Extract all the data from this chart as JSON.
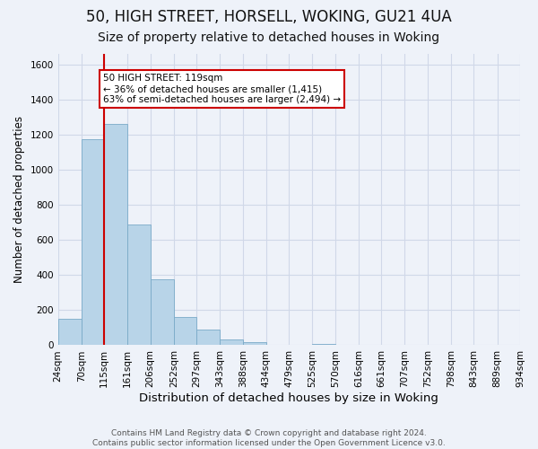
{
  "title": "50, HIGH STREET, HORSELL, WOKING, GU21 4UA",
  "subtitle": "Size of property relative to detached houses in Woking",
  "xlabel": "Distribution of detached houses by size in Woking",
  "ylabel": "Number of detached properties",
  "bin_edges": [
    24,
    70,
    115,
    161,
    206,
    252,
    297,
    343,
    388,
    434,
    479,
    525,
    570,
    616,
    661,
    707,
    752,
    798,
    843,
    889,
    934
  ],
  "bar_heights": [
    150,
    1175,
    1260,
    690,
    375,
    160,
    90,
    35,
    20,
    0,
    0,
    10,
    0,
    0,
    0,
    0,
    0,
    0,
    0,
    0
  ],
  "bar_color": "#b8d4e8",
  "bar_edge_color": "#7aaac8",
  "highlight_bin_index": 2,
  "highlight_line_color": "#cc0000",
  "ylim": [
    0,
    1660
  ],
  "yticks": [
    0,
    200,
    400,
    600,
    800,
    1000,
    1200,
    1400,
    1600
  ],
  "bin_labels": [
    "24sqm",
    "70sqm",
    "115sqm",
    "161sqm",
    "206sqm",
    "252sqm",
    "297sqm",
    "343sqm",
    "388sqm",
    "434sqm",
    "479sqm",
    "525sqm",
    "570sqm",
    "616sqm",
    "661sqm",
    "707sqm",
    "752sqm",
    "798sqm",
    "843sqm",
    "889sqm",
    "934sqm"
  ],
  "annotation_title": "50 HIGH STREET: 119sqm",
  "annotation_line1": "← 36% of detached houses are smaller (1,415)",
  "annotation_line2": "63% of semi-detached houses are larger (2,494) →",
  "annotation_box_color": "#ffffff",
  "annotation_box_edge": "#cc0000",
  "grid_color": "#d0d8e8",
  "background_color": "#eef2f9",
  "footer_line1": "Contains HM Land Registry data © Crown copyright and database right 2024.",
  "footer_line2": "Contains public sector information licensed under the Open Government Licence v3.0.",
  "title_fontsize": 12,
  "subtitle_fontsize": 10,
  "xlabel_fontsize": 9.5,
  "ylabel_fontsize": 8.5,
  "tick_fontsize": 7.5,
  "annotation_fontsize": 7.5,
  "footer_fontsize": 6.5
}
